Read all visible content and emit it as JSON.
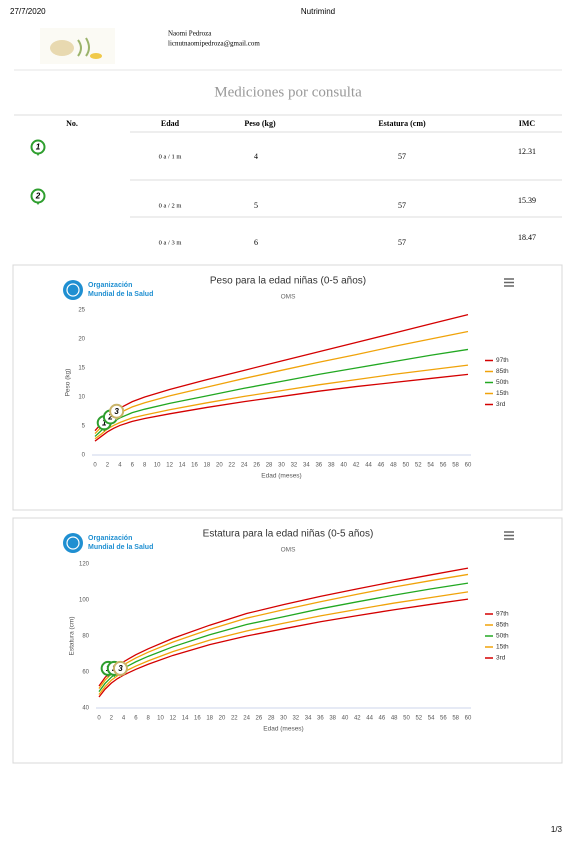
{
  "header": {
    "date": "27/7/2020",
    "app": "Nutrimind",
    "name": "Naomi Pedroza",
    "email": "licnutnaomipedroza@gmail.com"
  },
  "title": "Mediciones por consulta",
  "table": {
    "columns": [
      "No.",
      "Edad",
      "Peso (kg)",
      "Estatura (cm)",
      "IMC"
    ],
    "rows": [
      {
        "no": "1",
        "edad": "0 a / 1 m",
        "peso": "4",
        "estatura": "57",
        "imc": "12.31"
      },
      {
        "no": "2",
        "edad": "0 a / 2 m",
        "peso": "5",
        "estatura": "57",
        "imc": "15.39"
      },
      {
        "edad": "0 a / 3 m",
        "peso": "6",
        "estatura": "57",
        "imc": "18.47"
      }
    ]
  },
  "chart_data": [
    {
      "type": "line",
      "title": "Peso para la edad niñas (0-5 años)",
      "subtitle": "OMS",
      "logo": [
        "Organización",
        "Mundial de la Salud"
      ],
      "x_label": "Edad (meses)",
      "y_label": "Peso (kg)",
      "x": [
        0,
        1,
        2,
        3,
        4,
        6,
        8,
        12,
        18,
        24,
        30,
        36,
        42,
        48,
        54,
        60
      ],
      "series": [
        {
          "name": "97th",
          "color": "#d40000",
          "values": [
            4.2,
            5.4,
            6.5,
            7.4,
            8.1,
            9.2,
            10.0,
            11.3,
            13.0,
            14.6,
            16.2,
            17.8,
            19.4,
            21.0,
            22.6,
            24.2
          ]
        },
        {
          "name": "85th",
          "color": "#f0a30a",
          "values": [
            3.7,
            4.8,
            5.9,
            6.7,
            7.3,
            8.3,
            9.0,
            10.2,
            11.7,
            13.2,
            14.6,
            16.0,
            17.3,
            18.7,
            20.0,
            21.3
          ]
        },
        {
          "name": "50th",
          "color": "#22a822",
          "values": [
            3.2,
            4.2,
            5.1,
            5.8,
            6.4,
            7.3,
            7.9,
            8.9,
            10.2,
            11.5,
            12.7,
            13.9,
            15.0,
            16.1,
            17.2,
            18.2
          ]
        },
        {
          "name": "15th",
          "color": "#f0a30a",
          "values": [
            2.8,
            3.6,
            4.5,
            5.1,
            5.6,
            6.4,
            6.9,
            7.8,
            9.0,
            10.1,
            11.1,
            12.1,
            13.0,
            13.9,
            14.7,
            15.5
          ]
        },
        {
          "name": "3rd",
          "color": "#d40000",
          "values": [
            2.4,
            3.2,
            4.0,
            4.6,
            5.1,
            5.8,
            6.3,
            7.1,
            8.2,
            9.2,
            10.1,
            11.0,
            11.8,
            12.5,
            13.2,
            13.9
          ]
        }
      ],
      "patients": {
        "x": [
          1,
          2,
          3
        ],
        "values": [
          4,
          5,
          6
        ],
        "labels": [
          "1",
          "2",
          "3"
        ],
        "colors": [
          "#2e9e2e",
          "#2e9e2e",
          "#c9b46a"
        ]
      },
      "xlim": [
        0,
        60
      ],
      "xticks": [
        0,
        2,
        4,
        6,
        8,
        10,
        12,
        14,
        16,
        18,
        20,
        22,
        24,
        26,
        28,
        30,
        32,
        34,
        36,
        38,
        40,
        42,
        44,
        46,
        48,
        50,
        52,
        54,
        56,
        58,
        60
      ],
      "ylim": [
        0,
        25
      ],
      "yticks": [
        0,
        5,
        10,
        15,
        20,
        25
      ],
      "grid": false,
      "legend": "right"
    },
    {
      "type": "line",
      "title": "Estatura para la edad niñas (0-5 años)",
      "subtitle": "OMS",
      "logo": [
        "Organización",
        "Mundial de la Salud"
      ],
      "x_label": "Edad (meses)",
      "y_label": "Estatura (cm)",
      "x": [
        0,
        1,
        2,
        3,
        4,
        6,
        8,
        12,
        18,
        24,
        30,
        36,
        42,
        48,
        54,
        60
      ],
      "series": [
        {
          "name": "97th",
          "color": "#d40000",
          "values": [
            52.2,
            57.0,
            60.4,
            63.3,
            65.7,
            69.6,
            72.9,
            78.7,
            86.0,
            92.5,
            97.4,
            102.0,
            106.2,
            110.2,
            114.0,
            117.7
          ]
        },
        {
          "name": "85th",
          "color": "#f0a30a",
          "values": [
            50.8,
            55.5,
            58.9,
            61.7,
            64.0,
            67.8,
            71.0,
            76.6,
            83.7,
            89.9,
            94.6,
            99.0,
            103.2,
            107.2,
            110.8,
            114.2
          ]
        },
        {
          "name": "50th",
          "color": "#22a822",
          "values": [
            49.1,
            53.7,
            57.1,
            59.8,
            62.1,
            65.7,
            68.7,
            74.0,
            80.7,
            86.4,
            90.7,
            95.1,
            99.0,
            102.7,
            106.2,
            109.4
          ]
        },
        {
          "name": "15th",
          "color": "#f0a30a",
          "values": [
            47.5,
            51.9,
            55.4,
            57.9,
            60.0,
            63.3,
            66.2,
            71.3,
            77.7,
            82.8,
            87.1,
            91.2,
            94.8,
            98.3,
            101.4,
            104.5
          ]
        },
        {
          "name": "3rd",
          "color": "#d40000",
          "values": [
            46.1,
            50.5,
            53.8,
            56.3,
            58.3,
            61.5,
            64.3,
            69.2,
            75.2,
            80.0,
            84.0,
            87.9,
            91.3,
            94.6,
            97.6,
            100.5
          ]
        }
      ],
      "patients": {
        "x": [
          1,
          2,
          3
        ],
        "values": [
          57,
          57,
          57
        ],
        "labels": [
          "1",
          "2",
          "3"
        ],
        "colors": [
          "#2e9e2e",
          "#2e9e2e",
          "#c9b46a"
        ]
      },
      "xlim": [
        0,
        60
      ],
      "xticks": [
        0,
        2,
        4,
        6,
        8,
        10,
        12,
        14,
        16,
        18,
        20,
        22,
        24,
        26,
        28,
        30,
        32,
        34,
        36,
        38,
        40,
        42,
        44,
        46,
        48,
        50,
        52,
        54,
        56,
        58,
        60
      ],
      "ylim": [
        40,
        120
      ],
      "yticks": [
        40,
        60,
        80,
        100,
        120
      ],
      "grid": false,
      "legend": "right"
    }
  ],
  "footer": {
    "page": "1/3"
  }
}
